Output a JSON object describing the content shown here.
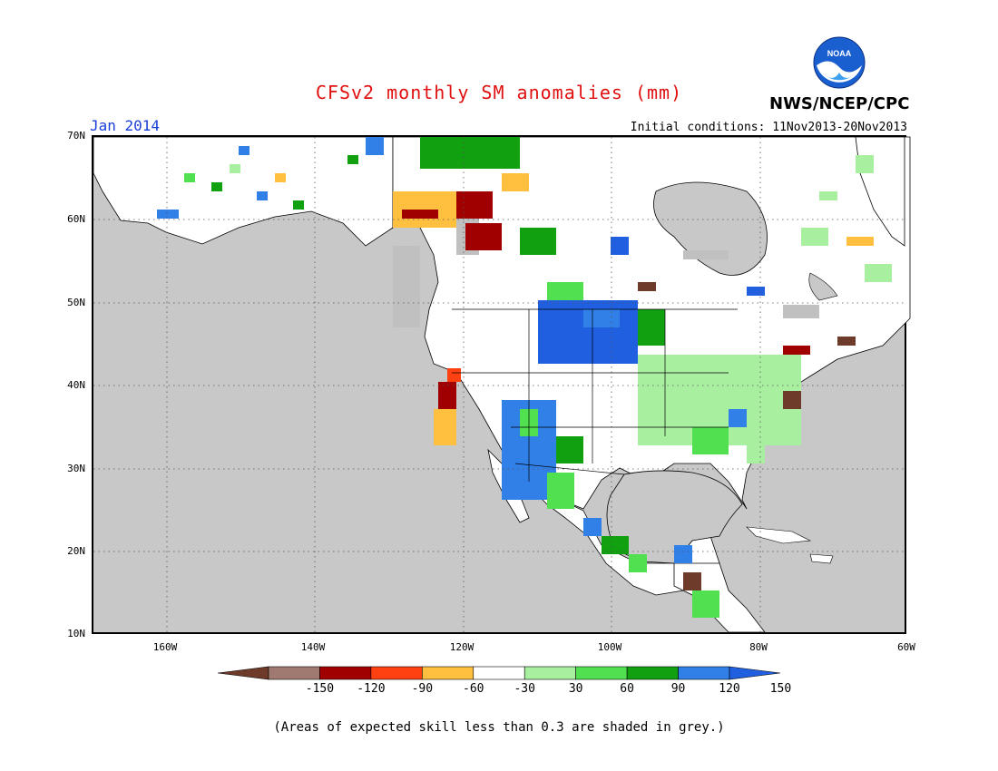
{
  "header": {
    "title": "CFSv2 monthly SM anomalies (mm)",
    "target_month": "Jan 2014",
    "initial_conditions": "Initial conditions: 11Nov2013-20Nov2013",
    "agency": "NWS/NCEP/CPC",
    "logo_text": "NOAA"
  },
  "map": {
    "lat_labels": [
      "70N",
      "60N",
      "50N",
      "40N",
      "30N",
      "20N",
      "10N"
    ],
    "lon_labels": [
      "160W",
      "140W",
      "120W",
      "100W",
      "80W",
      "60W"
    ],
    "lat_range": [
      10,
      70
    ],
    "lon_range": [
      -170,
      -60
    ],
    "ocean_color": "#c8c8c8",
    "land_color": "#ffffff",
    "grid": "dotted"
  },
  "legend": {
    "ticks": [
      "-150",
      "-120",
      "-90",
      "-60",
      "-30",
      "30",
      "60",
      "90",
      "120",
      "150"
    ],
    "colors": [
      "#6e3b2b",
      "#a07a70",
      "#a00000",
      "#ff4010",
      "#ffc040",
      "#ffffff",
      "#a8f0a0",
      "#50e050",
      "#10a010",
      "#3080e8",
      "#2060e0"
    ]
  },
  "footnote": "(Areas of expected skill less than 0.3 are shaded in grey.)"
}
